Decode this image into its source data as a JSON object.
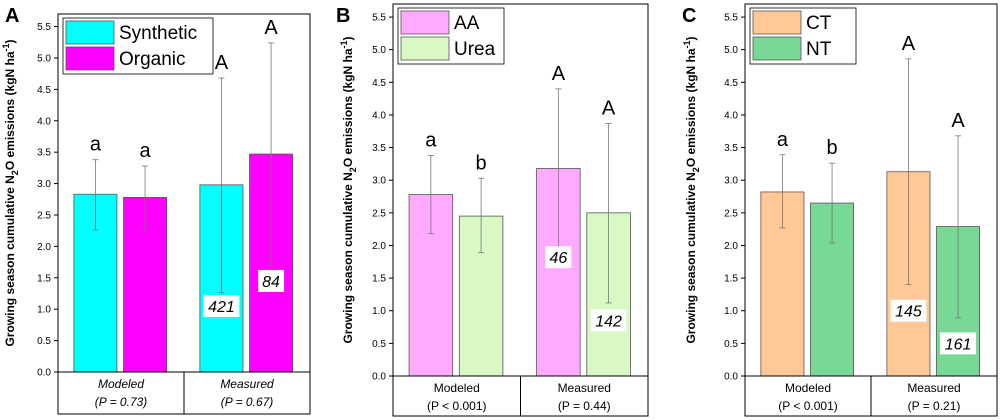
{
  "chart_data": [
    {
      "type": "bar",
      "panel_letter": "A",
      "ylabel_pre": "Growing season cumulative N",
      "ylabel_sub": "2",
      "ylabel_post": "O emissions (kgN ha",
      "ylabel_sup": "-1",
      "ylabel_end": ")",
      "ylim": [
        0,
        5.7
      ],
      "yticks": [
        "0.0",
        "0.5",
        "1.0",
        "1.5",
        "2.0",
        "2.5",
        "3.0",
        "3.5",
        "4.0",
        "4.5",
        "5.0",
        "5.5"
      ],
      "group_labels": [
        {
          "line1": "Modeled",
          "line2": "(P = 0.73)"
        },
        {
          "line1": "Measured",
          "line2": "(P = 0.67)"
        }
      ],
      "group_italic": true,
      "legend": [
        "Synthetic",
        "Organic"
      ],
      "colors": [
        "#00ffff",
        "#ff00ff"
      ],
      "series": [
        {
          "name": "Synthetic",
          "values": [
            2.83,
            2.98
          ],
          "err_low": [
            2.26,
            1.26
          ],
          "err_high": [
            3.38,
            4.68
          ]
        },
        {
          "name": "Organic",
          "values": [
            2.78,
            3.47
          ],
          "err_low": [
            2.26,
            1.69
          ],
          "err_high": [
            3.28,
            5.24
          ]
        }
      ],
      "letters": [
        [
          "a",
          "a"
        ],
        [
          "A",
          "A"
        ]
      ],
      "sample_sizes": [
        {
          "text": "421",
          "series": 0,
          "group": 1,
          "y": 1.05
        },
        {
          "text": "84",
          "series": 1,
          "group": 1,
          "y": 1.45
        }
      ]
    },
    {
      "type": "bar",
      "panel_letter": "B",
      "ylabel_pre": "Growing season cumulative N",
      "ylabel_sub": "2",
      "ylabel_post": "O emissions (kgN ha",
      "ylabel_sup": "-1",
      "ylabel_end": ")",
      "ylim": [
        0,
        5.7
      ],
      "yticks": [
        "0.0",
        "0.5",
        "1.0",
        "1.5",
        "2.0",
        "2.5",
        "3.0",
        "3.5",
        "4.0",
        "4.5",
        "5.0",
        "5.5"
      ],
      "group_labels": [
        {
          "line1": "Modeled",
          "line2": "(P < 0.001)"
        },
        {
          "line1": "Measured",
          "line2": "(P = 0.44)"
        }
      ],
      "group_italic": false,
      "legend": [
        "AA",
        "Urea"
      ],
      "colors": [
        "#ffaaff",
        "#d9f8c4"
      ],
      "series": [
        {
          "name": "AA",
          "values": [
            2.78,
            3.18
          ],
          "err_low": [
            2.18,
            1.95
          ],
          "err_high": [
            3.38,
            4.4
          ]
        },
        {
          "name": "Urea",
          "values": [
            2.45,
            2.5
          ],
          "err_low": [
            1.89,
            1.12
          ],
          "err_high": [
            3.03,
            3.87
          ]
        }
      ],
      "letters": [
        [
          "a",
          "b"
        ],
        [
          "A",
          "A"
        ]
      ],
      "sample_sizes": [
        {
          "text": "46",
          "series": 0,
          "group": 1,
          "y": 1.82
        },
        {
          "text": "142",
          "series": 1,
          "group": 1,
          "y": 0.85
        }
      ]
    },
    {
      "type": "bar",
      "panel_letter": "C",
      "ylabel_pre": "Growing season cumulative N",
      "ylabel_sub": "2",
      "ylabel_post": "O emissions (kgN ha",
      "ylabel_sup": "-1",
      "ylabel_end": ")",
      "ylim": [
        0,
        5.7
      ],
      "yticks": [
        "0.0",
        "0.5",
        "1.0",
        "1.5",
        "2.0",
        "2.5",
        "3.0",
        "3.5",
        "4.0",
        "4.5",
        "5.0",
        "5.5"
      ],
      "group_labels": [
        {
          "line1": "Modeled",
          "line2": "(P < 0.001)"
        },
        {
          "line1": "Measured",
          "line2": "(P = 0.21)"
        }
      ],
      "group_italic": false,
      "legend": [
        "CT",
        "NT"
      ],
      "colors": [
        "#ffc896",
        "#78d896"
      ],
      "series": [
        {
          "name": "CT",
          "values": [
            2.82,
            3.13
          ],
          "err_low": [
            2.27,
            1.4
          ],
          "err_high": [
            3.39,
            4.86
          ]
        },
        {
          "name": "NT",
          "values": [
            2.65,
            2.29
          ],
          "err_low": [
            2.04,
            0.89
          ],
          "err_high": [
            3.26,
            3.68
          ]
        }
      ],
      "letters": [
        [
          "a",
          "b"
        ],
        [
          "A",
          "A"
        ]
      ],
      "sample_sizes": [
        {
          "text": "145",
          "series": 0,
          "group": 1,
          "y": 1.0
        },
        {
          "text": "161",
          "series": 1,
          "group": 1,
          "y": 0.5
        }
      ]
    }
  ]
}
